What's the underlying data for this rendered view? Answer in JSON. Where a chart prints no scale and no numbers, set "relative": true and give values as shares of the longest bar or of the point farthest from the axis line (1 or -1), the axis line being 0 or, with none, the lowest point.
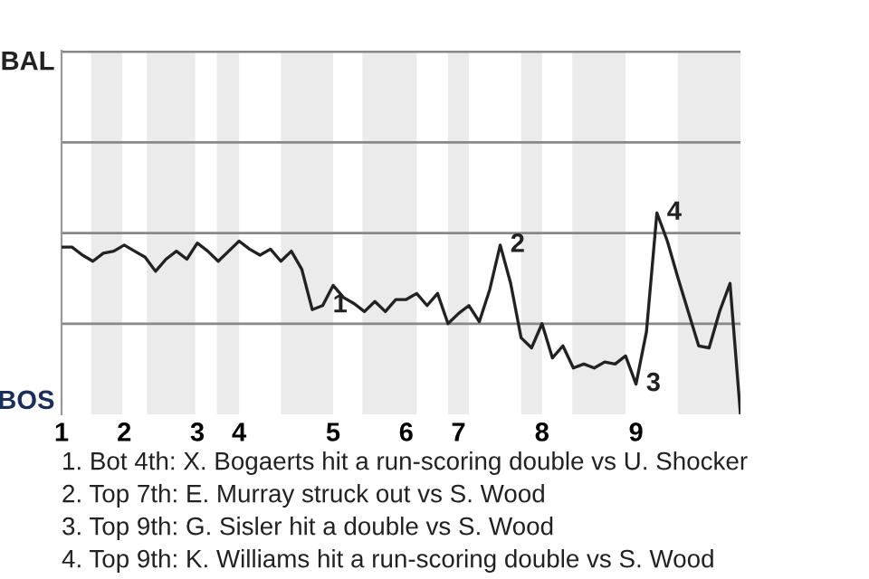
{
  "chart_data": {
    "type": "line",
    "relative": true,
    "categories": [
      "1",
      null,
      null,
      null,
      null,
      null,
      "2",
      null,
      null,
      null,
      null,
      null,
      null,
      "3",
      null,
      null,
      null,
      "4",
      null,
      null,
      null,
      null,
      null,
      null,
      null,
      null,
      "5",
      null,
      null,
      null,
      null,
      null,
      null,
      "6",
      null,
      null,
      null,
      null,
      "7",
      null,
      null,
      null,
      null,
      null,
      null,
      null,
      "8",
      null,
      null,
      null,
      null,
      null,
      null,
      null,
      null,
      "9",
      null,
      null,
      null,
      null,
      null,
      null,
      null,
      null,
      null,
      null
    ],
    "series": [
      {
        "color": "#222222",
        "values": [
          0.83,
          0.83,
          0.79,
          0.76,
          0.8,
          0.81,
          0.84,
          0.81,
          0.78,
          0.71,
          0.77,
          0.81,
          0.77,
          0.85,
          0.81,
          0.76,
          0.81,
          0.86,
          0.82,
          0.79,
          0.82,
          0.76,
          0.81,
          0.72,
          0.52,
          0.54,
          0.64,
          0.58,
          0.55,
          0.51,
          0.56,
          0.51,
          0.57,
          0.57,
          0.6,
          0.54,
          0.6,
          0.45,
          0.5,
          0.54,
          0.46,
          0.62,
          0.84,
          0.65,
          0.38,
          0.33,
          0.45,
          0.28,
          0.34,
          0.23,
          0.25,
          0.23,
          0.26,
          0.25,
          0.29,
          0.15,
          0.41,
          1,
          0.86,
          0.68,
          0.51,
          0.34,
          0.33,
          0.51,
          0.65,
          0
        ],
        "name": null
      }
    ],
    "ref_lines": [
      {
        "axis": "y",
        "value": 0.45,
        "color": "#888888"
      },
      {
        "axis": "y",
        "value": 0.9,
        "color": "#888888"
      },
      {
        "axis": "y",
        "value": 1.35,
        "color": "#888888"
      },
      {
        "axis": "y",
        "value": 1.8,
        "color": "#888888"
      }
    ],
    "line_style": "solid",
    "marker": "none",
    "annotations": [
      "BAL",
      "BOS",
      "1",
      "2",
      "3",
      "4",
      "1. Bot 4th: X. Bogaerts hit a run-scoring double vs U. Shocker",
      "2. Top 7th: E. Murray struck out vs S. Wood",
      "3. Top 9th: G. Sisler hit a double vs S. Wood",
      "4. Top 9th: K. Williams hit a run-scoring double vs S. Wood"
    ]
  }
}
